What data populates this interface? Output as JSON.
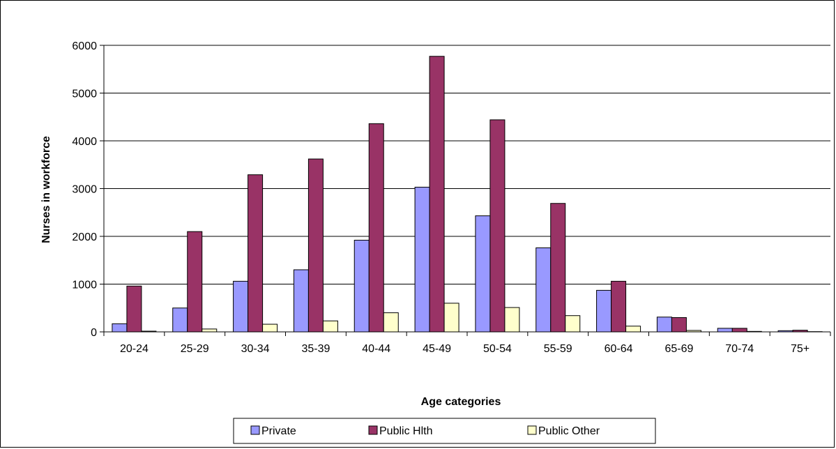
{
  "chart_data": {
    "type": "bar",
    "title": "",
    "xlabel": "Age categories",
    "ylabel": "Nurses in workforce",
    "ylim": [
      0,
      6000
    ],
    "yticks": [
      0,
      1000,
      2000,
      3000,
      4000,
      5000,
      6000
    ],
    "grid": true,
    "legend_position": "bottom",
    "categories": [
      "20-24",
      "25-29",
      "30-34",
      "35-39",
      "40-44",
      "45-49",
      "50-54",
      "55-59",
      "60-64",
      "65-69",
      "70-74",
      "75+"
    ],
    "series": [
      {
        "name": "Private",
        "color": "#9999ff",
        "values": [
          170,
          500,
          1060,
          1300,
          1920,
          3030,
          2430,
          1760,
          870,
          310,
          75,
          25
        ]
      },
      {
        "name": "Public Hlth",
        "color": "#993366",
        "values": [
          960,
          2100,
          3290,
          3620,
          4360,
          5770,
          4440,
          2690,
          1060,
          300,
          75,
          35
        ]
      },
      {
        "name": "Public Other",
        "color": "#ffffcc",
        "values": [
          15,
          60,
          160,
          230,
          400,
          600,
          510,
          340,
          120,
          30,
          10,
          5
        ]
      }
    ]
  }
}
